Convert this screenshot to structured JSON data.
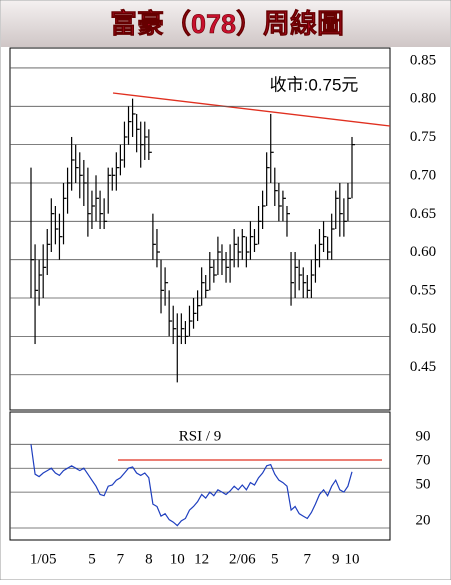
{
  "chart_data": [
    {
      "type": "ohlc",
      "title": "富豪（078）周線圖",
      "annotation": "收市:0.75元",
      "color": "#000000",
      "grid": true,
      "categories": [
        null,
        null,
        null,
        "1/05",
        null,
        null,
        null,
        null,
        null,
        null,
        null,
        null,
        null,
        null,
        null,
        "5",
        null,
        null,
        null,
        null,
        null,
        null,
        "7",
        null,
        null,
        null,
        null,
        null,
        null,
        "8",
        null,
        null,
        null,
        null,
        null,
        null,
        "10",
        null,
        null,
        null,
        null,
        null,
        "12",
        null,
        null,
        null,
        null,
        null,
        null,
        null,
        null,
        null,
        "2/06",
        null,
        null,
        null,
        null,
        null,
        null,
        null,
        "5",
        null,
        null,
        null,
        null,
        null,
        null,
        null,
        "7",
        null,
        null,
        null,
        null,
        null,
        null,
        "9",
        null,
        null,
        null,
        "10"
      ],
      "high": [
        0.72,
        0.62,
        0.6,
        0.62,
        0.64,
        0.68,
        0.67,
        0.66,
        0.7,
        0.72,
        0.76,
        0.75,
        0.74,
        0.73,
        0.72,
        0.69,
        0.71,
        0.69,
        0.68,
        0.72,
        0.72,
        0.74,
        0.75,
        0.78,
        0.8,
        0.81,
        0.79,
        0.78,
        0.78,
        0.77,
        0.66,
        0.64,
        0.6,
        0.59,
        0.56,
        0.54,
        0.53,
        0.53,
        0.52,
        0.54,
        0.55,
        0.56,
        0.59,
        0.58,
        0.61,
        0.6,
        0.63,
        0.62,
        0.61,
        0.62,
        0.64,
        0.63,
        0.64,
        0.63,
        0.65,
        0.64,
        0.67,
        0.69,
        0.74,
        0.79,
        0.72,
        0.7,
        0.69,
        0.67,
        0.61,
        0.61,
        0.6,
        0.59,
        0.58,
        0.6,
        0.62,
        0.64,
        0.65,
        0.63,
        0.66,
        0.69,
        0.7,
        0.68,
        0.7,
        0.76
      ],
      "low": [
        0.55,
        0.49,
        0.54,
        0.55,
        0.58,
        0.61,
        0.62,
        0.6,
        0.62,
        0.66,
        0.69,
        0.7,
        0.68,
        0.67,
        0.63,
        0.64,
        0.65,
        0.64,
        0.64,
        0.66,
        0.69,
        0.69,
        0.71,
        0.72,
        0.75,
        0.76,
        0.74,
        0.72,
        0.73,
        0.73,
        0.6,
        0.59,
        0.53,
        0.54,
        0.5,
        0.49,
        0.44,
        0.49,
        0.49,
        0.5,
        0.51,
        0.52,
        0.54,
        0.55,
        0.56,
        0.57,
        0.58,
        0.58,
        0.57,
        0.57,
        0.59,
        0.59,
        0.6,
        0.59,
        0.6,
        0.61,
        0.62,
        0.64,
        0.67,
        0.7,
        0.67,
        0.65,
        0.65,
        0.63,
        0.54,
        0.55,
        0.56,
        0.55,
        0.55,
        0.55,
        0.57,
        0.59,
        0.61,
        0.6,
        0.6,
        0.64,
        0.63,
        0.63,
        0.65,
        0.68
      ],
      "close": [
        0.6,
        0.56,
        0.58,
        0.59,
        0.62,
        0.66,
        0.64,
        0.63,
        0.68,
        0.7,
        0.73,
        0.72,
        0.71,
        0.7,
        0.66,
        0.67,
        0.68,
        0.66,
        0.65,
        0.71,
        0.71,
        0.72,
        0.73,
        0.76,
        0.78,
        0.79,
        0.77,
        0.75,
        0.76,
        0.74,
        0.62,
        0.61,
        0.56,
        0.57,
        0.52,
        0.51,
        0.5,
        0.51,
        0.5,
        0.52,
        0.53,
        0.54,
        0.57,
        0.56,
        0.59,
        0.58,
        0.61,
        0.6,
        0.59,
        0.6,
        0.62,
        0.61,
        0.63,
        0.61,
        0.63,
        0.62,
        0.65,
        0.67,
        0.72,
        0.74,
        0.69,
        0.67,
        0.68,
        0.66,
        0.57,
        0.59,
        0.58,
        0.57,
        0.56,
        0.58,
        0.6,
        0.62,
        0.63,
        0.61,
        0.64,
        0.68,
        0.66,
        0.65,
        0.68,
        0.75
      ],
      "ylim": [
        0.404,
        0.876
      ],
      "yticks": [
        0.45,
        {
          "value": 0.5,
          "label": "0.50"
        },
        0.55,
        {
          "value": 0.6,
          "label": "0.60"
        },
        0.65,
        {
          "value": 0.7,
          "label": "0.70"
        },
        0.75,
        {
          "value": 0.8,
          "label": "0.80"
        },
        0.85
      ]
    },
    {
      "type": "line",
      "label": "RSI / 9",
      "color": "#1f3fbf",
      "grid": true,
      "values": [
        90,
        65,
        63,
        66,
        68,
        70,
        66,
        64,
        68,
        70,
        72,
        70,
        68,
        70,
        65,
        60,
        55,
        48,
        47,
        55,
        56,
        60,
        62,
        66,
        70,
        71,
        66,
        64,
        66,
        62,
        40,
        38,
        30,
        32,
        27,
        25,
        22,
        26,
        28,
        35,
        38,
        42,
        48,
        45,
        50,
        47,
        52,
        50,
        48,
        51,
        55,
        52,
        56,
        52,
        58,
        56,
        62,
        66,
        72,
        73,
        65,
        60,
        58,
        55,
        35,
        38,
        32,
        30,
        28,
        33,
        40,
        48,
        52,
        47,
        55,
        60,
        52,
        50,
        55,
        67
      ],
      "ylim": [
        10,
        117
      ],
      "yticks": [
        20,
        50,
        70,
        90
      ]
    }
  ]
}
